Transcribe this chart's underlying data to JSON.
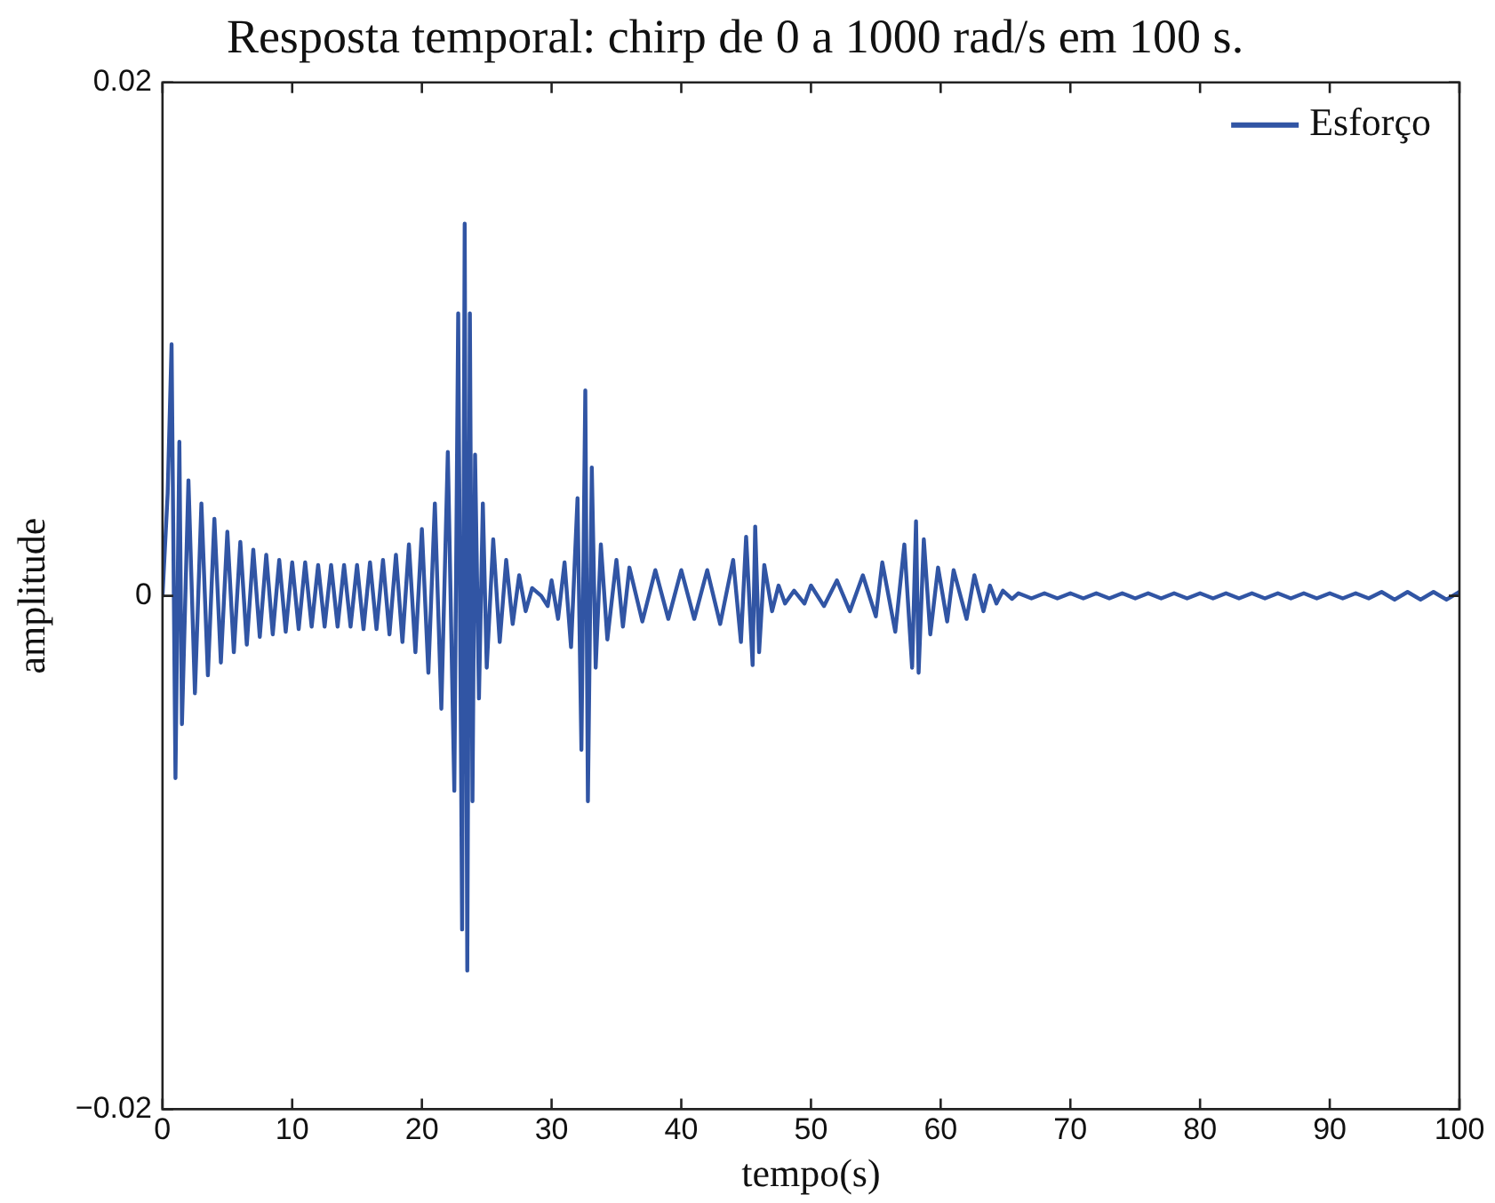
{
  "chart_data": {
    "type": "line",
    "title": "Resposta temporal: chirp de 0 a 1000 rad/s em 100 s.",
    "xlabel": "tempo(s)",
    "ylabel": "amplitude",
    "xlim": [
      0,
      100
    ],
    "xticks": [
      0,
      10,
      20,
      30,
      40,
      50,
      60,
      70,
      80,
      90,
      100
    ],
    "ylim": [
      -0.02,
      0.02
    ],
    "yticks": [
      {
        "value": -0.02,
        "label": "−0.02"
      },
      0,
      0.02
    ],
    "grid": false,
    "legend": "top right",
    "series": [
      {
        "name": "Esforço",
        "color": "#3155a4",
        "x": [
          0,
          0.4,
          0.7,
          1.0,
          1.3,
          1.5,
          2,
          2.5,
          3,
          3.5,
          4,
          4.5,
          5,
          5.5,
          6,
          6.5,
          7,
          7.5,
          8,
          8.5,
          9,
          9.5,
          10,
          10.5,
          11,
          11.5,
          12,
          12.5,
          13,
          13.5,
          14,
          14.5,
          15,
          15.5,
          16,
          16.5,
          17,
          17.5,
          18,
          18.5,
          19,
          19.5,
          20,
          20.5,
          21,
          21.5,
          22,
          22.5,
          22.8,
          23.1,
          23.3,
          23.5,
          23.7,
          23.9,
          24.1,
          24.4,
          24.7,
          25,
          25.5,
          26,
          26.5,
          27,
          27.5,
          28,
          28.5,
          29.2,
          29.7,
          30,
          30.5,
          31,
          31.5,
          32,
          32.3,
          32.6,
          32.8,
          33.1,
          33.4,
          33.8,
          34.3,
          35,
          35.5,
          36,
          37,
          38,
          39,
          40,
          41,
          42,
          43,
          44,
          44.6,
          45,
          45.5,
          45.7,
          46,
          46.4,
          47,
          47.5,
          48,
          48.7,
          49.5,
          50,
          51,
          52,
          53,
          54,
          55,
          55.5,
          56.5,
          57.2,
          57.8,
          58.1,
          58.3,
          58.7,
          59.2,
          59.8,
          60.5,
          61,
          62,
          62.6,
          63.3,
          63.8,
          64.3,
          64.8,
          65.5,
          66,
          67,
          68,
          69,
          70,
          71,
          72,
          73,
          74,
          75,
          76,
          77,
          78,
          79,
          80,
          81,
          82,
          83,
          84,
          85,
          86,
          87,
          88,
          89,
          90,
          91,
          92,
          93,
          94,
          95,
          96,
          97,
          98,
          99,
          100
        ],
        "values": [
          0,
          0.004,
          0.0098,
          -0.0071,
          0.006,
          -0.005,
          0.0045,
          -0.0038,
          0.0036,
          -0.0031,
          0.003,
          -0.0026,
          0.0025,
          -0.0022,
          0.0021,
          -0.0019,
          0.0018,
          -0.0016,
          0.0016,
          -0.0015,
          0.0014,
          -0.0014,
          0.0013,
          -0.0013,
          0.0013,
          -0.0012,
          0.0012,
          -0.0012,
          0.0012,
          -0.0012,
          0.0012,
          -0.0012,
          0.0012,
          -0.0013,
          0.0013,
          -0.0013,
          0.0014,
          -0.0015,
          0.0016,
          -0.0018,
          0.002,
          -0.0022,
          0.0026,
          -0.003,
          0.0036,
          -0.0044,
          0.0056,
          -0.0076,
          0.011,
          -0.013,
          0.0145,
          -0.0146,
          0.011,
          -0.008,
          0.0055,
          -0.004,
          0.0036,
          -0.0028,
          0.0022,
          -0.0018,
          0.0014,
          -0.0011,
          0.0008,
          -0.0006,
          0.0003,
          0,
          -0.0004,
          0.0006,
          -0.0009,
          0.0013,
          -0.002,
          0.0038,
          -0.006,
          0.008,
          -0.008,
          0.005,
          -0.0028,
          0.002,
          -0.0017,
          0.0014,
          -0.0012,
          0.0011,
          -0.001,
          0.001,
          -0.0009,
          0.001,
          -0.0009,
          0.001,
          -0.0011,
          0.0014,
          -0.0018,
          0.0023,
          -0.0027,
          0.0027,
          -0.0022,
          0.0012,
          -0.0006,
          0.0004,
          -0.0003,
          0.0002,
          -0.0003,
          0.0004,
          -0.0004,
          0.0006,
          -0.0006,
          0.0008,
          -0.0008,
          0.0013,
          -0.0014,
          0.002,
          -0.0028,
          0.0029,
          -0.003,
          0.0022,
          -0.0015,
          0.0011,
          -0.001,
          0.001,
          -0.0009,
          0.0008,
          -0.0006,
          0.0004,
          -0.0003,
          0.0002,
          -0.00012,
          0.0001,
          -0.0001,
          0.0001,
          -0.0001,
          0.0001,
          -0.0001,
          0.0001,
          -0.0001,
          0.0001,
          -0.0001,
          0.0001,
          -0.0001,
          0.0001,
          -0.0001,
          0.0001,
          -0.0001,
          0.0001,
          -0.0001,
          0.0001,
          -0.0001,
          0.0001,
          -0.0001,
          0.0001,
          -0.0001,
          0.0001,
          -0.0001,
          0.0001,
          -0.0001,
          0.00015,
          -0.00015,
          0.00015,
          -0.00015,
          0.00015,
          -0.00015,
          0.00015
        ]
      }
    ]
  }
}
